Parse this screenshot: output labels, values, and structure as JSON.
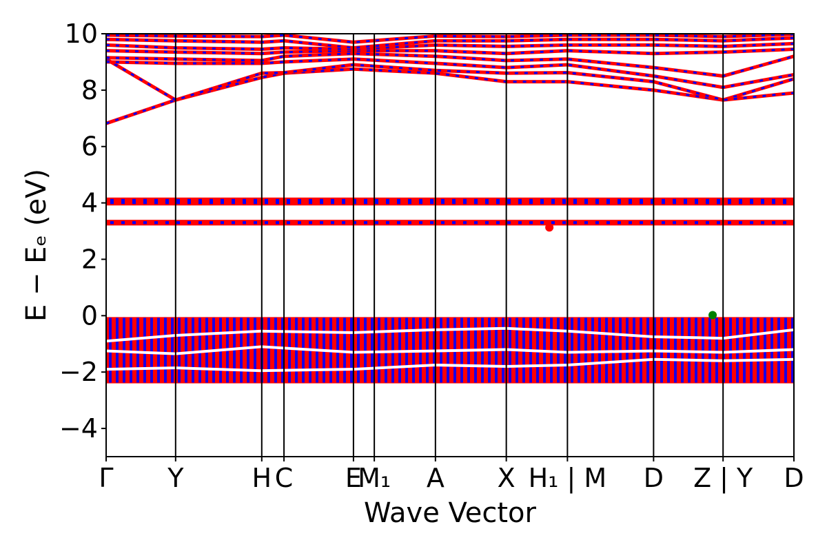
{
  "chart_data": {
    "type": "line",
    "title": "",
    "xlabel": "Wave Vector",
    "ylabel": "E − Eₑ (eV)",
    "ylim": [
      -5,
      10
    ],
    "yticks": [
      -4,
      -2,
      0,
      2,
      4,
      6,
      8,
      10
    ],
    "ytick_labels": [
      "−4",
      "−2",
      "0",
      "2",
      "4",
      "6",
      "8",
      "10"
    ],
    "xlim": [
      0,
      9.9
    ],
    "grid": false,
    "kpoints": [
      {
        "label": "Γ",
        "x": 0.0
      },
      {
        "label": "Y",
        "x": 1.0
      },
      {
        "label": "H",
        "x": 2.24
      },
      {
        "label": "C",
        "x": 2.56
      },
      {
        "label": "E",
        "x": 3.56
      },
      {
        "label": "M₁",
        "x": 3.86
      },
      {
        "label": "A",
        "x": 4.74
      },
      {
        "label": "X",
        "x": 5.76
      },
      {
        "label": "H₁ | M",
        "x": 6.64
      },
      {
        "label": "D",
        "x": 7.88
      },
      {
        "label": "Z | Y",
        "x": 8.88
      },
      {
        "label": "D",
        "x": 9.9
      }
    ],
    "band_colors": {
      "spin_up": "#ff0000",
      "spin_down": "#0000ff",
      "vbm": "#008000"
    },
    "conduction_bands": [
      {
        "x": [
          0,
          1,
          2.24,
          2.56,
          3.56,
          4.74,
          5.76,
          6.64,
          7.88,
          8.88,
          9.9
        ],
        "y": [
          6.82,
          7.65,
          8.45,
          8.6,
          8.75,
          8.6,
          8.3,
          8.3,
          8.0,
          7.65,
          8.4
        ]
      },
      {
        "x": [
          0,
          1,
          2.24,
          2.56,
          3.56,
          4.74,
          5.76,
          6.64,
          7.88,
          8.88,
          9.9
        ],
        "y": [
          9.1,
          7.65,
          8.6,
          8.62,
          8.9,
          8.7,
          8.6,
          8.62,
          8.3,
          7.65,
          7.9
        ]
      },
      {
        "x": [
          0,
          1,
          2.24,
          2.56,
          3.56,
          4.74,
          5.76,
          6.64,
          7.88,
          8.88,
          9.9
        ],
        "y": [
          9.0,
          8.95,
          8.95,
          9.0,
          9.1,
          8.95,
          8.8,
          8.9,
          8.5,
          8.1,
          8.55
        ]
      },
      {
        "x": [
          0,
          1,
          2.24,
          2.56,
          3.56,
          4.74,
          5.76,
          6.64,
          7.88,
          8.88,
          9.9
        ],
        "y": [
          9.15,
          9.1,
          9.05,
          9.2,
          9.3,
          9.2,
          9.05,
          9.1,
          8.8,
          8.5,
          9.2
        ]
      },
      {
        "x": [
          0,
          1,
          2.24,
          2.56,
          3.56,
          4.74,
          5.76,
          6.64,
          7.88,
          8.88,
          9.9
        ],
        "y": [
          9.4,
          9.35,
          9.3,
          9.35,
          9.4,
          9.4,
          9.3,
          9.4,
          9.3,
          9.35,
          9.45
        ]
      },
      {
        "x": [
          0,
          1,
          2.24,
          2.56,
          3.56,
          4.74,
          5.76,
          6.64,
          7.88,
          8.88,
          9.9
        ],
        "y": [
          9.6,
          9.5,
          9.45,
          9.5,
          9.45,
          9.6,
          9.55,
          9.6,
          9.6,
          9.55,
          9.65
        ]
      },
      {
        "x": [
          0,
          1,
          2.24,
          2.56,
          3.56,
          4.74,
          5.76,
          6.64,
          7.88,
          8.88,
          9.9
        ],
        "y": [
          9.8,
          9.75,
          9.7,
          9.75,
          9.5,
          9.75,
          9.75,
          9.8,
          9.8,
          9.75,
          9.85
        ]
      },
      {
        "x": [
          0,
          1,
          2.24,
          2.56,
          3.56,
          4.74,
          5.76,
          6.64,
          7.88,
          8.88,
          9.9
        ],
        "y": [
          9.95,
          9.92,
          9.9,
          9.95,
          9.7,
          9.92,
          9.9,
          9.95,
          9.95,
          9.9,
          9.98
        ]
      }
    ],
    "flat_bands": [
      {
        "center": 4.05,
        "halfwidth": 0.14
      },
      {
        "center": 3.3,
        "halfwidth": 0.1
      }
    ],
    "valence_manifold": {
      "top": -0.05,
      "bottom": -2.4
    },
    "valence_gaps": [
      {
        "x": [
          0,
          1,
          2.24,
          3.56,
          4.74,
          5.76,
          6.64,
          7.88,
          8.88,
          9.9
        ],
        "y": [
          -0.9,
          -0.7,
          -0.55,
          -0.6,
          -0.5,
          -0.45,
          -0.55,
          -0.75,
          -0.8,
          -0.5
        ]
      },
      {
        "x": [
          0,
          1,
          2.24,
          3.56,
          4.74,
          5.76,
          6.64,
          7.88,
          8.88,
          9.9
        ],
        "y": [
          -1.25,
          -1.35,
          -1.1,
          -1.3,
          -1.25,
          -1.2,
          -1.3,
          -1.25,
          -1.3,
          -1.2
        ]
      },
      {
        "x": [
          0,
          1,
          2.24,
          3.56,
          4.74,
          5.76,
          6.64,
          7.88,
          8.88,
          9.9
        ],
        "y": [
          -1.9,
          -1.85,
          -1.95,
          -1.9,
          -1.75,
          -1.8,
          -1.75,
          -1.55,
          -1.6,
          -1.55
        ]
      }
    ],
    "markers": [
      {
        "name": "cbm",
        "x": 6.38,
        "y": 3.13,
        "color": "#ff0000"
      },
      {
        "name": "vbm",
        "x": 8.73,
        "y": 0.02,
        "color": "#008000"
      }
    ]
  }
}
